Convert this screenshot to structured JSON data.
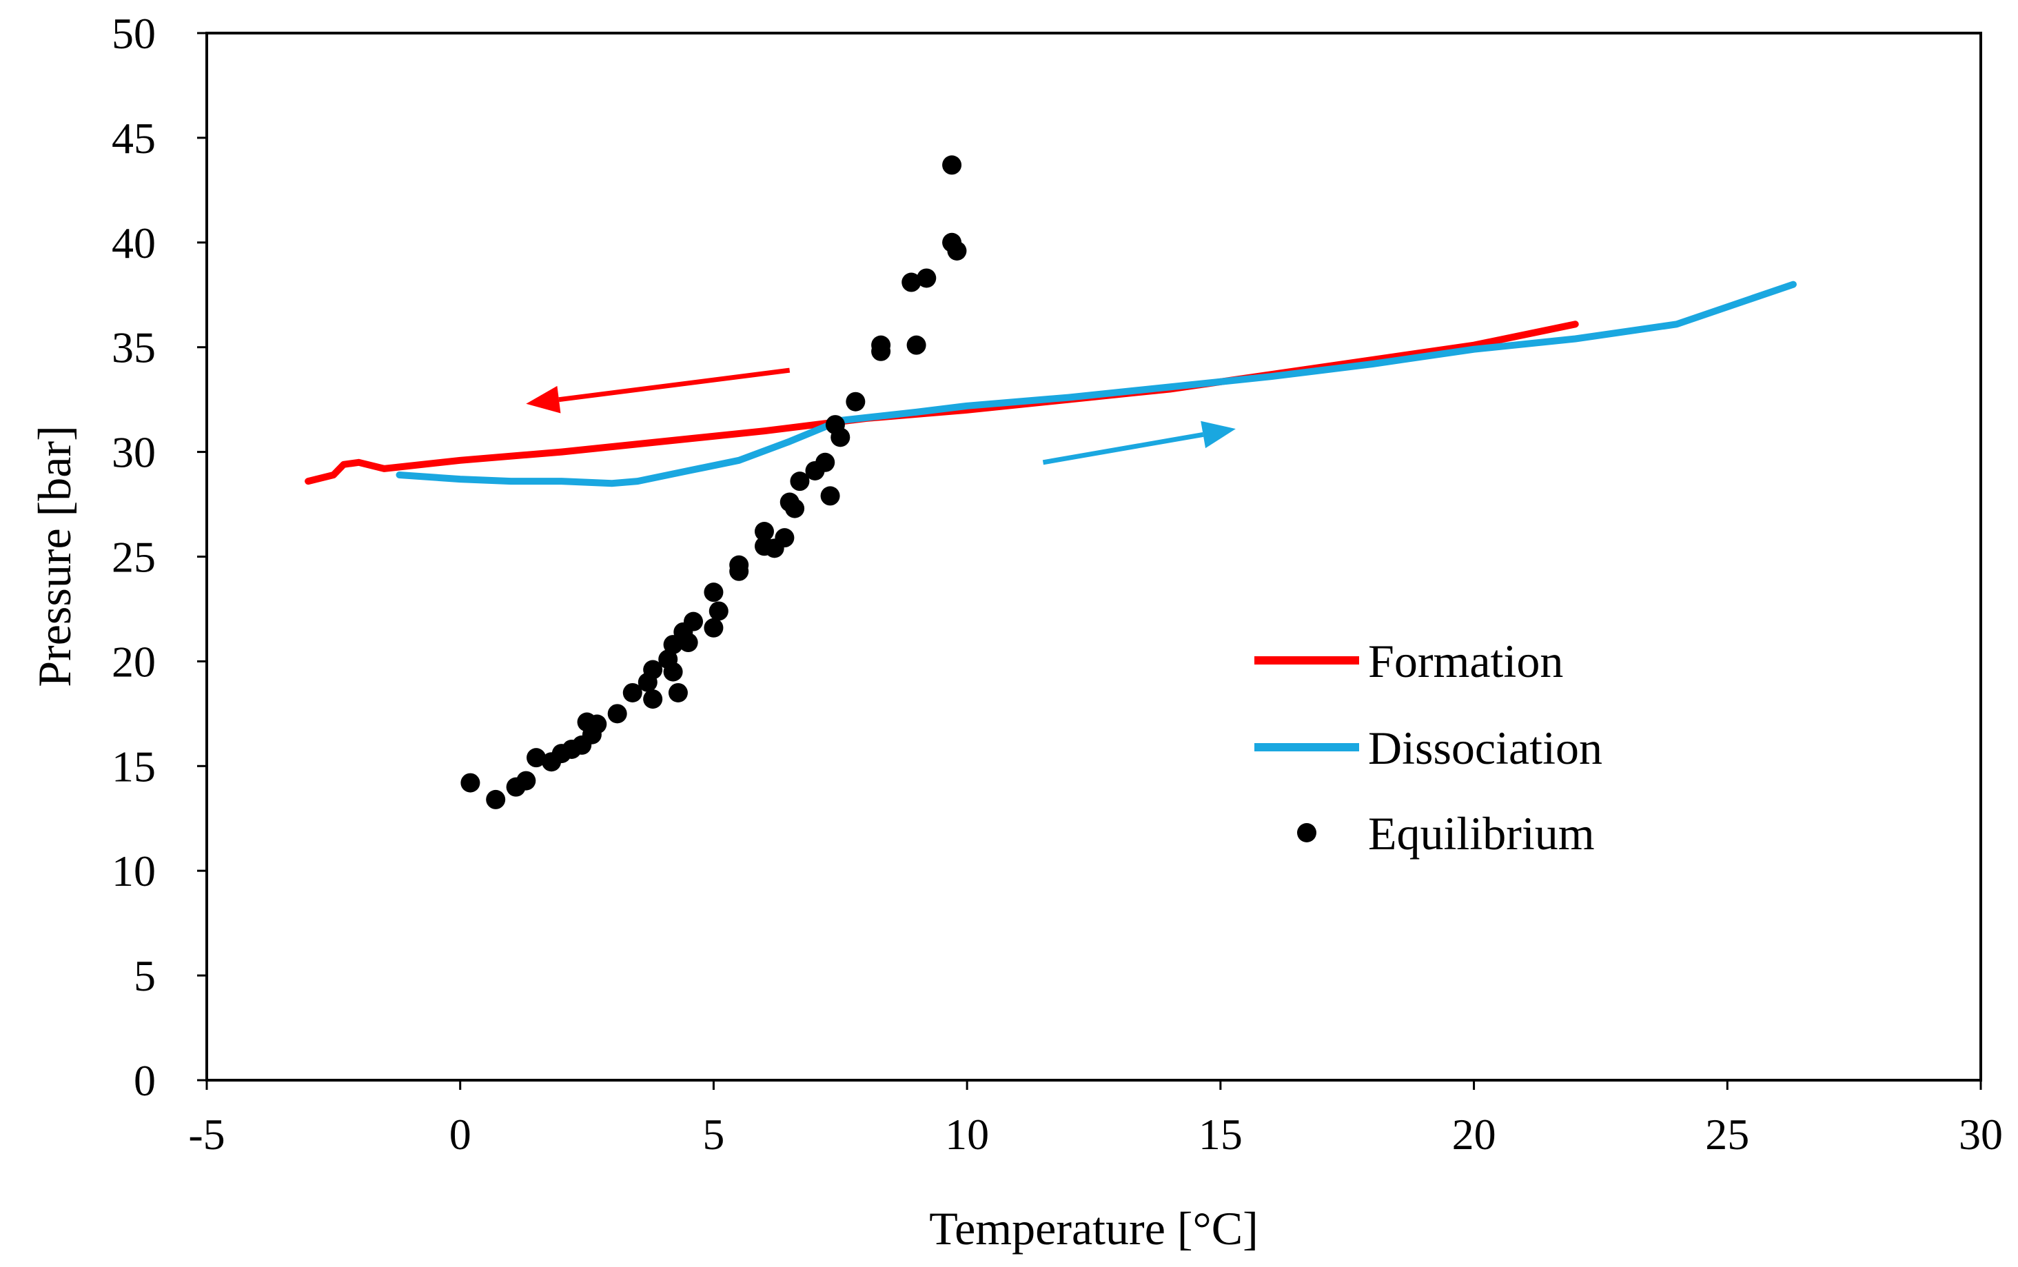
{
  "chart_data": {
    "type": "scatter",
    "title": "",
    "xlabel": "Temperature [°C]",
    "ylabel": "Pressure [bar]",
    "xlim": [
      -5,
      30
    ],
    "ylim": [
      0,
      50
    ],
    "xticks": [
      -5,
      0,
      5,
      10,
      15,
      20,
      25,
      30
    ],
    "yticks": [
      0,
      5,
      10,
      15,
      20,
      25,
      30,
      35,
      40,
      45,
      50
    ],
    "grid": false,
    "legend_position": "center-right",
    "series": [
      {
        "name": "Formation",
        "kind": "line",
        "color": "#ff0000",
        "points": [
          [
            22.0,
            36.1
          ],
          [
            20.0,
            35.1
          ],
          [
            18.0,
            34.4
          ],
          [
            16.0,
            33.7
          ],
          [
            14.0,
            33.0
          ],
          [
            12.0,
            32.5
          ],
          [
            10.0,
            32.0
          ],
          [
            8.0,
            31.6
          ],
          [
            6.0,
            31.0
          ],
          [
            4.0,
            30.5
          ],
          [
            2.0,
            30.0
          ],
          [
            0.0,
            29.6
          ],
          [
            -1.5,
            29.2
          ],
          [
            -2.0,
            29.5
          ],
          [
            -2.3,
            29.4
          ],
          [
            -2.5,
            28.9
          ],
          [
            -3.0,
            28.6
          ]
        ]
      },
      {
        "name": "Dissociation",
        "kind": "line",
        "color": "#1aa7e0",
        "points": [
          [
            -1.2,
            28.9
          ],
          [
            0.0,
            28.7
          ],
          [
            1.0,
            28.6
          ],
          [
            2.0,
            28.6
          ],
          [
            3.0,
            28.5
          ],
          [
            3.5,
            28.6
          ],
          [
            4.5,
            29.1
          ],
          [
            5.5,
            29.6
          ],
          [
            6.5,
            30.5
          ],
          [
            7.5,
            31.5
          ],
          [
            9.0,
            31.9
          ],
          [
            10.0,
            32.2
          ],
          [
            12.0,
            32.6
          ],
          [
            14.0,
            33.1
          ],
          [
            16.0,
            33.6
          ],
          [
            18.0,
            34.2
          ],
          [
            20.0,
            34.9
          ],
          [
            22.0,
            35.4
          ],
          [
            24.0,
            36.1
          ],
          [
            26.3,
            38.0
          ]
        ]
      },
      {
        "name": "Equilibrium",
        "kind": "scatter",
        "color": "#000000",
        "points": [
          [
            0.2,
            14.2
          ],
          [
            0.7,
            13.4
          ],
          [
            1.1,
            14.0
          ],
          [
            1.3,
            14.3
          ],
          [
            1.5,
            15.4
          ],
          [
            1.8,
            15.2
          ],
          [
            2.0,
            15.6
          ],
          [
            2.2,
            15.8
          ],
          [
            2.4,
            16.0
          ],
          [
            2.5,
            17.1
          ],
          [
            2.6,
            16.5
          ],
          [
            2.7,
            17.0
          ],
          [
            3.1,
            17.5
          ],
          [
            3.4,
            18.5
          ],
          [
            3.7,
            19.0
          ],
          [
            3.8,
            19.6
          ],
          [
            3.8,
            18.2
          ],
          [
            4.1,
            20.1
          ],
          [
            4.2,
            19.5
          ],
          [
            4.2,
            20.8
          ],
          [
            4.3,
            18.5
          ],
          [
            4.4,
            21.4
          ],
          [
            4.5,
            20.9
          ],
          [
            4.6,
            21.9
          ],
          [
            5.0,
            23.3
          ],
          [
            5.0,
            21.6
          ],
          [
            5.1,
            22.4
          ],
          [
            5.5,
            24.3
          ],
          [
            5.5,
            24.6
          ],
          [
            6.0,
            25.5
          ],
          [
            6.0,
            26.2
          ],
          [
            6.2,
            25.4
          ],
          [
            6.4,
            25.9
          ],
          [
            6.5,
            27.6
          ],
          [
            6.6,
            27.3
          ],
          [
            6.7,
            28.6
          ],
          [
            7.0,
            29.1
          ],
          [
            7.2,
            29.5
          ],
          [
            7.3,
            27.9
          ],
          [
            7.4,
            31.3
          ],
          [
            7.5,
            30.7
          ],
          [
            7.8,
            32.4
          ],
          [
            8.3,
            34.8
          ],
          [
            8.3,
            35.1
          ],
          [
            8.9,
            38.1
          ],
          [
            9.0,
            35.1
          ],
          [
            9.2,
            38.3
          ],
          [
            9.7,
            43.7
          ],
          [
            9.7,
            40.0
          ],
          [
            9.8,
            39.6
          ]
        ]
      }
    ],
    "arrows": [
      {
        "series": "Formation",
        "direction": "left",
        "from": [
          6.5,
          33.9
        ],
        "to": [
          1.3,
          32.3
        ]
      },
      {
        "series": "Dissociation",
        "direction": "right",
        "from": [
          11.5,
          29.5
        ],
        "to": [
          15.3,
          31.1
        ]
      }
    ]
  }
}
